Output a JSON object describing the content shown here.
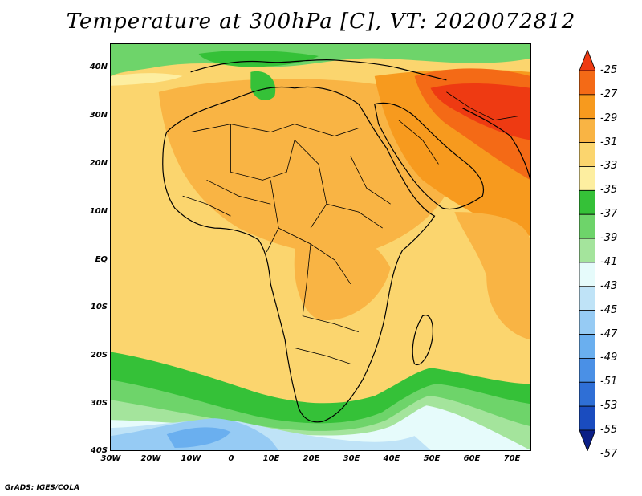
{
  "title": "Temperature at 300hPa [C], VT: 2020072812",
  "credit": "GrADS: IGES/COLA",
  "map": {
    "lon_range": [
      -30,
      75
    ],
    "lat_range": [
      -40,
      45
    ]
  },
  "y_ticks": [
    "40N",
    "30N",
    "20N",
    "10N",
    "EQ",
    "10S",
    "20S",
    "30S",
    "40S"
  ],
  "x_ticks": [
    "30W",
    "20W",
    "10W",
    "0",
    "10E",
    "20E",
    "30E",
    "40E",
    "50E",
    "60E",
    "70E"
  ],
  "colorbar": {
    "labels": [
      "-25",
      "-27",
      "-29",
      "-31",
      "-33",
      "-35",
      "-37",
      "-39",
      "-41",
      "-43",
      "-45",
      "-47",
      "-49",
      "-51",
      "-53",
      "-55",
      "-57"
    ],
    "colors": [
      "#ee3a12",
      "#f46a16",
      "#f79a1e",
      "#f9b444",
      "#fbd56e",
      "#fdeea0",
      "#35c138",
      "#6ed46a",
      "#a4e49c",
      "#e6fbfb",
      "#bfe3f7",
      "#96cbf4",
      "#6aafef",
      "#4a90e6",
      "#2f6fd6",
      "#1a4cbf",
      "#0b1f86"
    ]
  }
}
